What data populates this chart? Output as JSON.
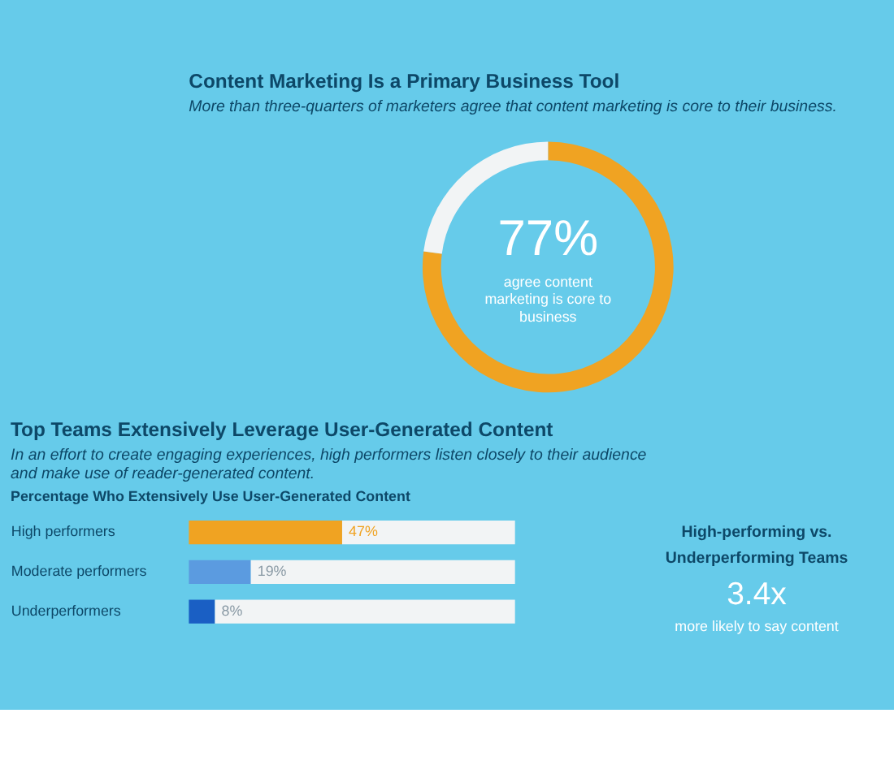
{
  "chart_data": [
    {
      "type": "donut",
      "title": "Content Marketing Is a Primary Business Tool",
      "subtitle": "More than three-quarters of marketers agree that content marketing is core to their business.",
      "categories": [
        null,
        null
      ],
      "values": [
        77,
        23
      ],
      "colors": [
        "#f0a322",
        "#f2f4f5"
      ],
      "legend": false,
      "annotations": [
        "77%",
        "agree content marketing is core to business"
      ]
    },
    {
      "type": "bar",
      "orientation": "horizontal",
      "stacked": true,
      "title": "Top Teams Extensively Leverage User-Generated Content",
      "subtitle": "In an effort to create engaging experiences, high performers listen closely to their audience and make use of reader-generated content.",
      "annotations": [
        "Percentage Who Extensively Use User-Generated Content"
      ],
      "categories": [
        "High performers",
        "Moderate performers",
        "Underperformers"
      ],
      "xlim": [
        0,
        100
      ],
      "tick_labels": "y",
      "legend": false,
      "series": [
        {
          "colors": [
            "#f0a322",
            "#5b9be0",
            "#1a5fc4"
          ],
          "values": [
            47,
            19,
            8
          ],
          "value_labels": [
            "47%",
            "19%",
            "8%"
          ]
        },
        {
          "color": "#f2f4f5",
          "values": [
            53,
            81,
            92
          ]
        }
      ]
    },
    {
      "type": "other",
      "title": "High-performing vs. Underperforming Teams",
      "annotations": [
        "3.4x",
        "more likely to say content"
      ]
    }
  ]
}
